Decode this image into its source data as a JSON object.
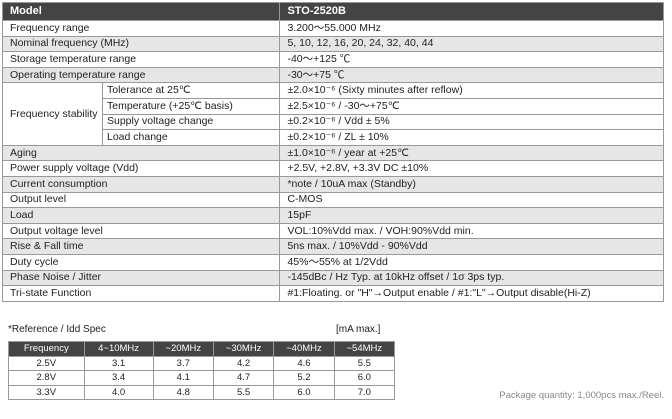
{
  "spec_table": {
    "header": [
      "Model",
      "STO-2520B"
    ],
    "rows_top": [
      [
        "Frequency range",
        "3.200〜55.000 MHz"
      ],
      [
        "Nominal frequency (MHz)",
        "5, 10, 12, 16, 20, 24, 32, 40, 44"
      ],
      [
        "Storage temperature range",
        "-40〜+125 ℃"
      ],
      [
        "Operating temperature range",
        "-30〜+75 ℃"
      ]
    ],
    "stability": {
      "label": "Frequency stability",
      "rows": [
        [
          "Tolerance at 25℃",
          "±2.0×10⁻⁶ (Sixty minutes after reflow)"
        ],
        [
          "Temperature (+25℃ basis)",
          "±2.5×10⁻⁶ / -30〜+75℃"
        ],
        [
          "Supply voltage change",
          "±0.2×10⁻⁶ / Vdd ± 5%"
        ],
        [
          "Load change",
          "±0.2×10⁻⁶ / ZL ± 10%"
        ]
      ]
    },
    "rows_bottom": [
      [
        "Aging",
        "±1.0×10⁻⁶ / year at +25℃"
      ],
      [
        "Power supply voltage (Vdd)",
        "+2.5V, +2.8V, +3.3V DC ±10%"
      ],
      [
        "Current consumption",
        "*note / 10uA max (Standby)"
      ],
      [
        "Output level",
        "C-MOS"
      ],
      [
        "Load",
        "15pF"
      ],
      [
        "Output voltage level",
        "VOL:10%Vdd max. / VOH:90%Vdd min."
      ],
      [
        "Rise & Fall time",
        "5ns max. / 10%Vdd - 90%Vdd"
      ],
      [
        "Duty cycle",
        "45%〜55% at 1/2Vdd"
      ],
      [
        "Phase Noise / Jitter",
        "-145dBc / Hz Typ. at 10kHz offset / 1σ 3ps typ."
      ],
      [
        "Tri-state Function",
        "#1:Floating. or \"H\"→Output enable / #1:\"L\"→Output disable(Hi-Z)"
      ]
    ]
  },
  "idd_spec": {
    "title": "*Reference / Idd Spec",
    "unit": "[mA max.]",
    "header": [
      "Frequency",
      "4~10MHz",
      "~20MHz",
      "~30MHz",
      "~40MHz",
      "~54MHz"
    ],
    "rows": [
      [
        "2.5V",
        "3.1",
        "3.7",
        "4.2",
        "4.6",
        "5.5"
      ],
      [
        "2.8V",
        "3.4",
        "4.1",
        "4.7",
        "5.2",
        "6.0"
      ],
      [
        "3.3V",
        "4.0",
        "4.8",
        "5.5",
        "6.0",
        "7.0"
      ]
    ]
  },
  "footer_note": "Package quantity: 1,000pcs max./Reel."
}
